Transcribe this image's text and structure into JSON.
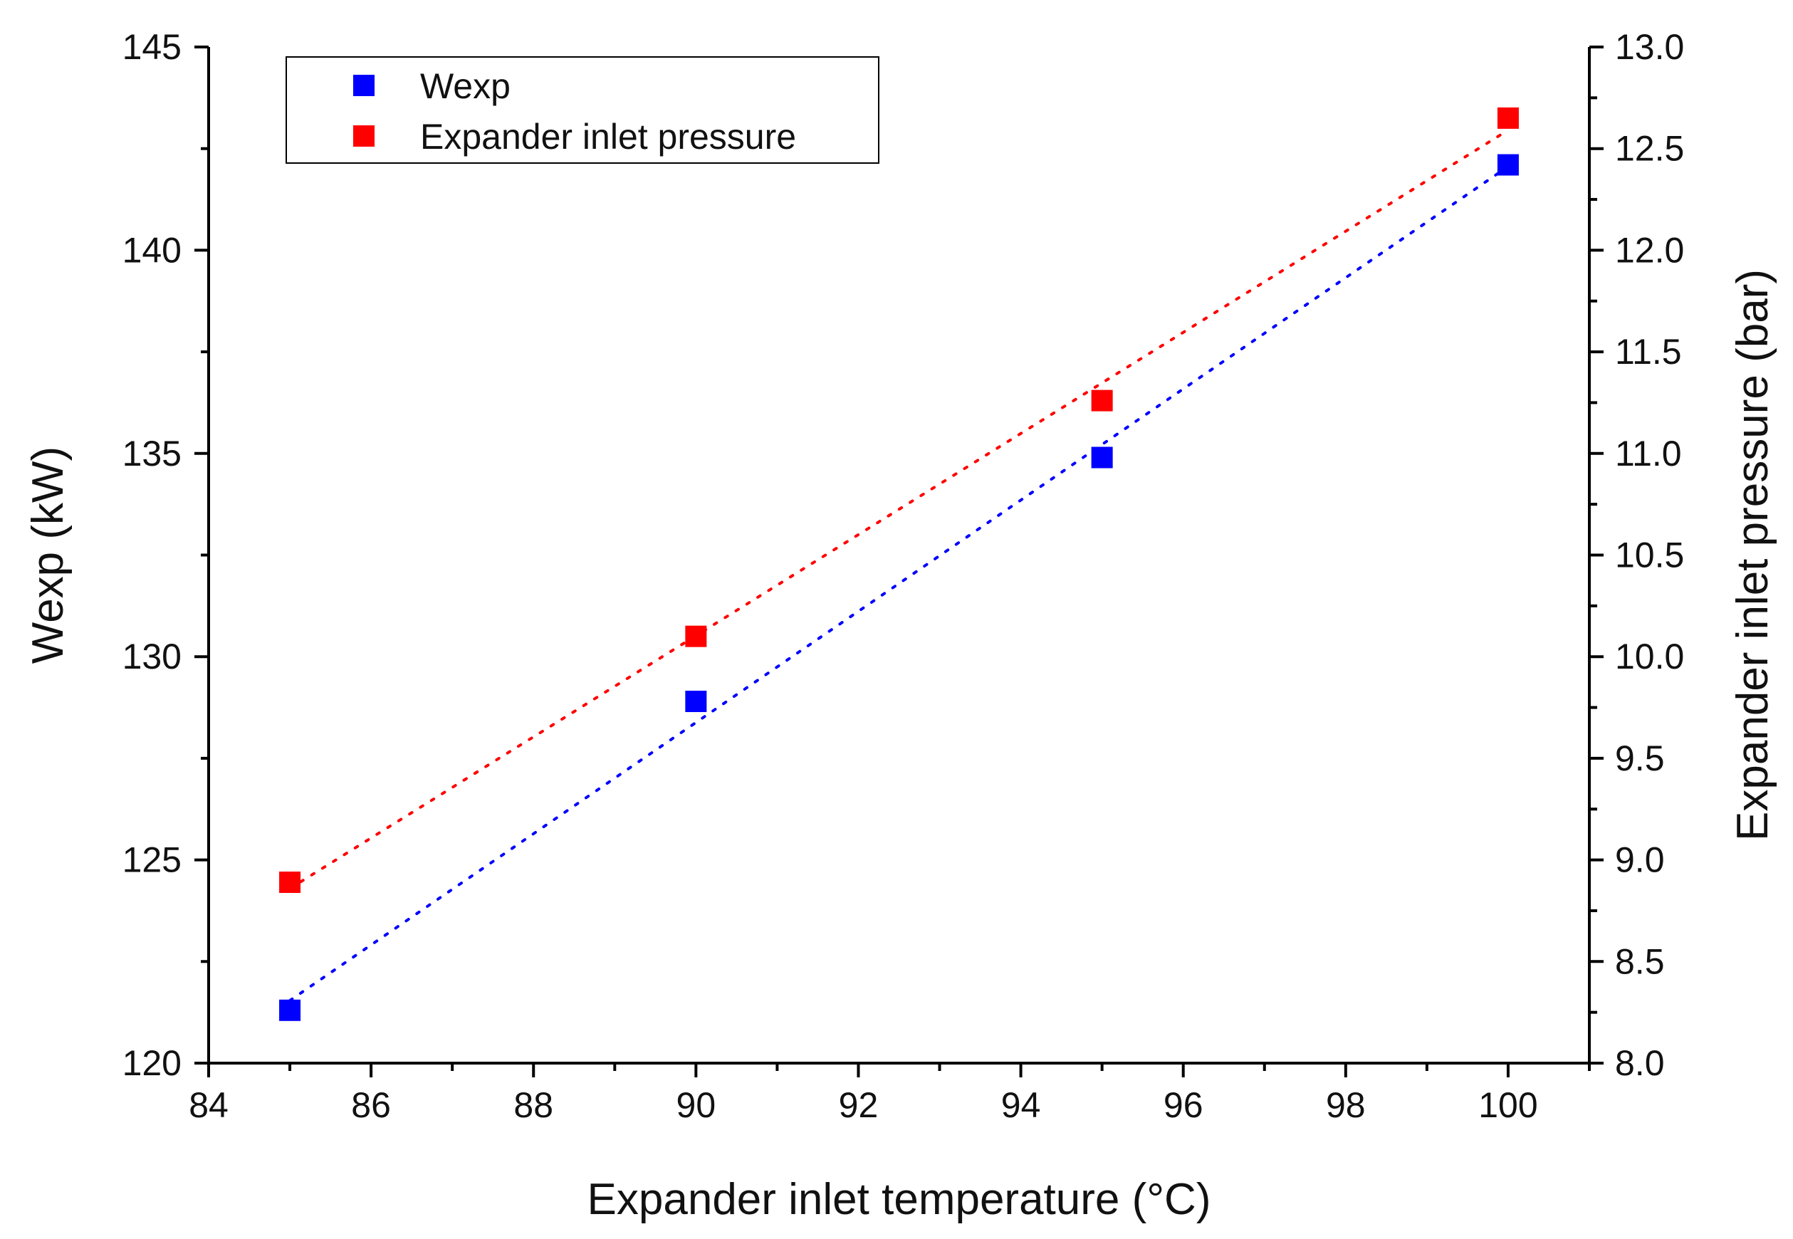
{
  "chart_data": {
    "type": "scatter",
    "title": "",
    "xlabel": "Expander inlet temperature (°C)",
    "ylabel_left": "Wexp (kW)",
    "ylabel_right": "Expander inlet pressure (bar)",
    "xlim": [
      84,
      101
    ],
    "ylim_left": [
      120,
      145
    ],
    "ylim_right": [
      8.0,
      13.0
    ],
    "xticks": [
      84,
      86,
      88,
      90,
      92,
      94,
      96,
      98,
      100
    ],
    "yticks_left": [
      120,
      125,
      130,
      135,
      140,
      145
    ],
    "yticks_right": [
      "8.0",
      "8.5",
      "9.0",
      "9.5",
      "10.0",
      "10.5",
      "11.0",
      "11.5",
      "12.0",
      "12.5",
      "13.0"
    ],
    "grid": false,
    "legend_position": "top-left",
    "series": [
      {
        "name": "Wexp",
        "axis": "left",
        "color": "#0000ff",
        "marker": "square",
        "trendline": "dotted-linear",
        "x": [
          85,
          90,
          95,
          100
        ],
        "y": [
          121.3,
          128.9,
          134.9,
          142.1
        ]
      },
      {
        "name": "Expander inlet pressure",
        "axis": "right",
        "color": "#ff0000",
        "marker": "square",
        "trendline": "dotted-linear",
        "x": [
          85,
          90,
          95,
          100
        ],
        "y": [
          8.89,
          10.1,
          11.26,
          12.65
        ]
      }
    ]
  }
}
